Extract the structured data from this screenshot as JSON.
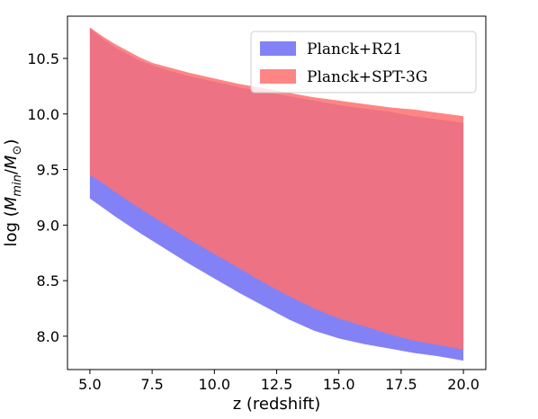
{
  "chart_data": {
    "type": "area",
    "xlabel": "z (redshift)",
    "ylabel_parts": {
      "prefix": "log (",
      "m": "M",
      "sub_min": "min",
      "slash": "/",
      "m2": "M",
      "sub_sun": "⊙",
      "suffix": ")"
    },
    "xlim": [
      4.1,
      20.9
    ],
    "ylim": [
      7.7,
      10.88
    ],
    "x": [
      5.0,
      5.5,
      6.0,
      7.0,
      7.5,
      8.0,
      9.0,
      10.0,
      11.0,
      12.0,
      12.5,
      13.0,
      14.0,
      15.0,
      16.0,
      17.0,
      17.5,
      18.0,
      19.0,
      20.0
    ],
    "xticks": [
      5.0,
      7.5,
      10.0,
      12.5,
      15.0,
      17.5,
      20.0
    ],
    "xtick_labels": [
      "5.0",
      "7.5",
      "10.0",
      "12.5",
      "15.0",
      "17.5",
      "20.0"
    ],
    "yticks": [
      8.0,
      8.5,
      9.0,
      9.5,
      10.0,
      10.5
    ],
    "ytick_labels": [
      "8.0",
      "8.5",
      "9.0",
      "9.5",
      "10.0",
      "10.5"
    ],
    "grid": false,
    "legend_position": "top-right",
    "series": [
      {
        "name": "Planck+R21",
        "color": "#6c6cf5",
        "alpha": 0.85,
        "lower": [
          9.24,
          9.16,
          9.08,
          8.93,
          8.86,
          8.79,
          8.65,
          8.52,
          8.39,
          8.27,
          8.21,
          8.15,
          8.05,
          7.98,
          7.93,
          7.89,
          7.87,
          7.85,
          7.82,
          7.78
        ],
        "upper": [
          10.77,
          10.68,
          10.6,
          10.48,
          10.44,
          10.4,
          10.34,
          10.29,
          10.24,
          10.2,
          10.18,
          10.16,
          10.12,
          10.08,
          10.05,
          10.02,
          10.0,
          9.98,
          9.95,
          9.92
        ]
      },
      {
        "name": "Planck+SPT-3G",
        "color": "#ff7070",
        "alpha": 0.85,
        "lower": [
          9.45,
          9.38,
          9.3,
          9.15,
          9.08,
          9.01,
          8.87,
          8.74,
          8.61,
          8.48,
          8.42,
          8.36,
          8.25,
          8.16,
          8.09,
          8.02,
          7.99,
          7.96,
          7.92,
          7.88
        ],
        "upper": [
          10.78,
          10.7,
          10.63,
          10.51,
          10.46,
          10.43,
          10.37,
          10.32,
          10.27,
          10.23,
          10.21,
          10.19,
          10.15,
          10.12,
          10.09,
          10.06,
          10.05,
          10.04,
          10.01,
          9.98
        ]
      }
    ]
  }
}
